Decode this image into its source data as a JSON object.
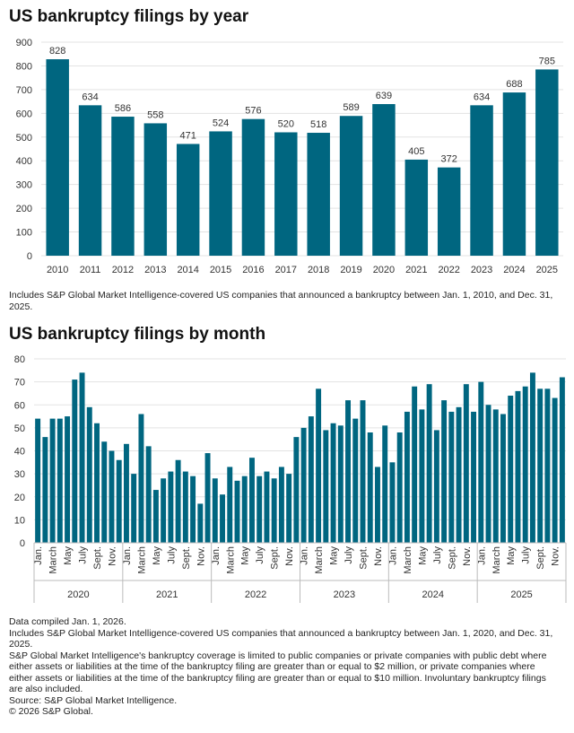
{
  "colors": {
    "bar": "#006680",
    "grid": "#e3e3e3",
    "axis_box": "#bbbbbb"
  },
  "chart_data": [
    {
      "type": "bar",
      "title": "US bankruptcy filings by year",
      "categories": [
        "2010",
        "2011",
        "2012",
        "2013",
        "2014",
        "2015",
        "2016",
        "2017",
        "2018",
        "2019",
        "2020",
        "2021",
        "2022",
        "2023",
        "2024",
        "2025"
      ],
      "values": [
        828,
        634,
        586,
        558,
        471,
        524,
        576,
        520,
        518,
        589,
        639,
        405,
        372,
        634,
        688,
        785
      ],
      "data_labels": true,
      "ylim": [
        0,
        900
      ],
      "yticks": [
        0,
        100,
        200,
        300,
        400,
        500,
        600,
        700,
        800,
        900
      ],
      "grid": true,
      "footnote": "Includes S&P Global Market Intelligence-covered US companies that announced a bankruptcy between Jan. 1, 2010, and Dec. 31, 2025."
    },
    {
      "type": "bar",
      "title": "US bankruptcy filings by month",
      "years": [
        "2020",
        "2021",
        "2022",
        "2023",
        "2024",
        "2025"
      ],
      "month_labels": [
        "Jan.",
        "",
        "March",
        "",
        "May",
        "",
        "July",
        "",
        "Sept.",
        "",
        "Nov.",
        ""
      ],
      "values": [
        [
          54,
          46,
          54,
          54,
          55,
          71,
          74,
          59,
          52,
          44,
          40,
          36
        ],
        [
          43,
          30,
          56,
          42,
          23,
          28,
          31,
          36,
          31,
          29,
          17,
          39
        ],
        [
          28,
          21,
          33,
          27,
          29,
          37,
          29,
          31,
          28,
          33,
          30,
          46
        ],
        [
          50,
          55,
          67,
          49,
          52,
          51,
          62,
          54,
          62,
          48,
          33,
          51
        ],
        [
          35,
          48,
          57,
          68,
          58,
          69,
          49,
          62,
          57,
          59,
          69,
          57
        ],
        [
          70,
          60,
          58,
          56,
          64,
          66,
          68,
          74,
          67,
          67,
          63,
          72
        ]
      ],
      "ylim": [
        0,
        80
      ],
      "yticks": [
        0,
        10,
        20,
        30,
        40,
        50,
        60,
        70,
        80
      ],
      "grid": true
    }
  ],
  "notes": [
    "Data compiled Jan. 1, 2026.",
    "Includes S&P Global Market Intelligence-covered US companies that announced a bankruptcy between Jan. 1, 2020, and Dec. 31, 2025.",
    "S&P Global Market Intelligence's bankruptcy coverage is limited to public companies or private companies with public debt where either assets or liabilities at the time of the bankruptcy filing are greater than or equal to $2 million, or private companies where either assets or liabilities at the time of the bankruptcy filing are greater than or equal to $10 million. Involuntary bankruptcy filings are also included.",
    "Source: S&P Global Market Intelligence.",
    "© 2026 S&P Global."
  ]
}
